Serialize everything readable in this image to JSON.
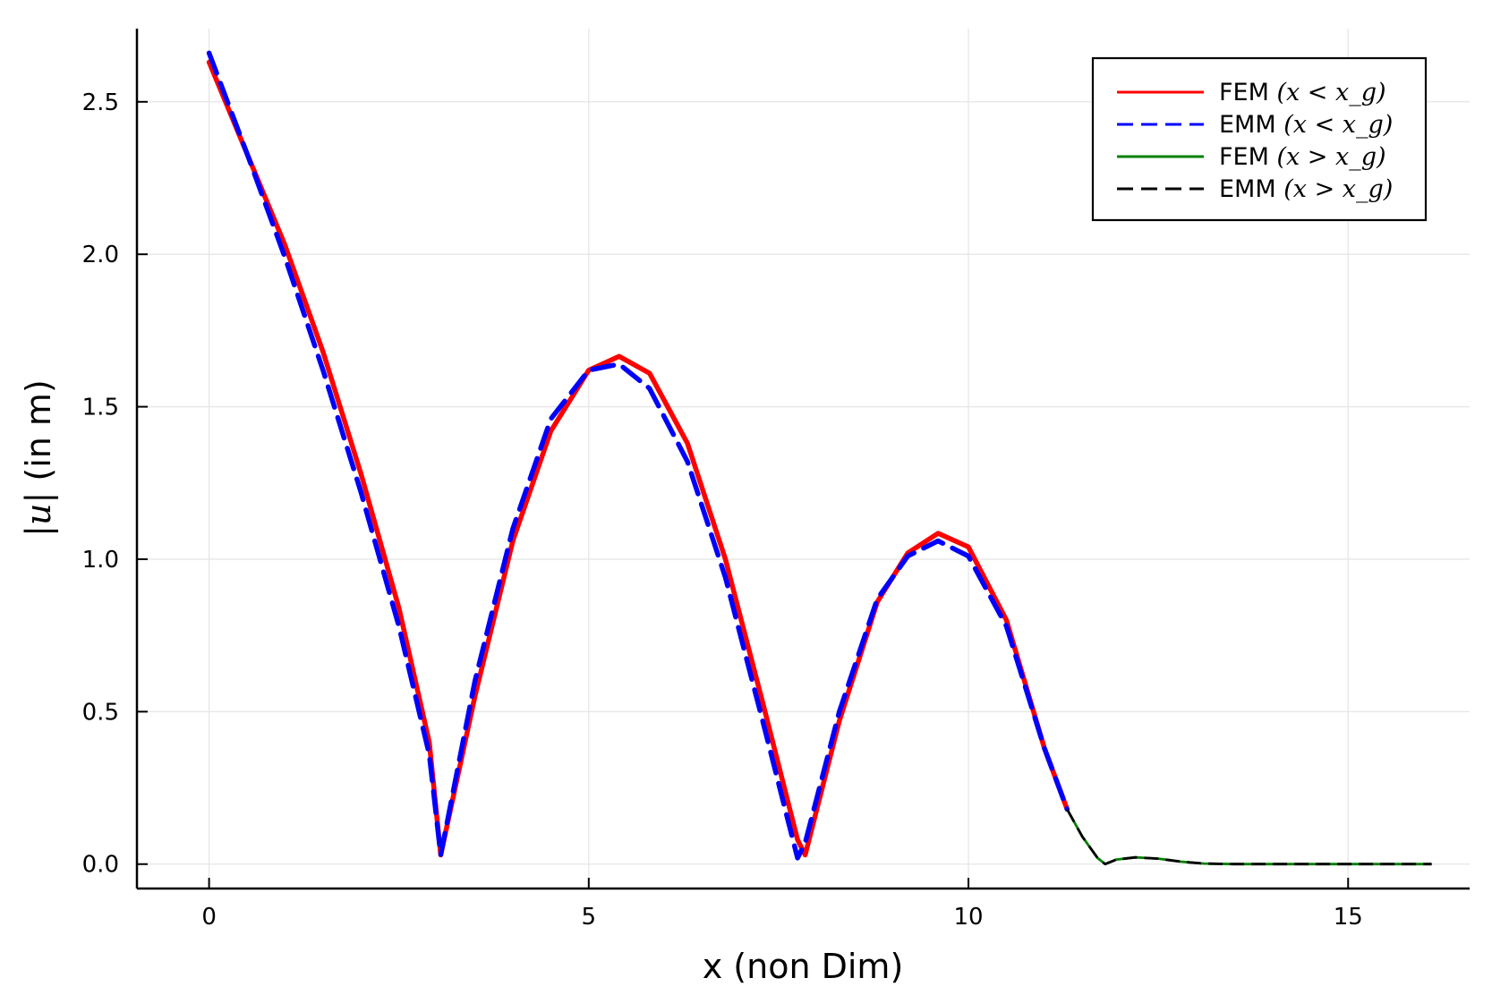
{
  "chart_data": {
    "type": "line",
    "xlabel": "x (non Dim)",
    "ylabel_math": "|u|",
    "ylabel_text": " (in m)",
    "xlim": [
      -0.95,
      16.6
    ],
    "ylim": [
      -0.08,
      2.74
    ],
    "xticks": [
      0,
      5,
      10,
      15
    ],
    "xtick_labels": [
      "0",
      "5",
      "10",
      "15"
    ],
    "yticks": [
      0.0,
      0.5,
      1.0,
      1.5,
      2.0,
      2.5
    ],
    "ytick_labels": [
      "0.0",
      "0.5",
      "1.0",
      "1.5",
      "2.0",
      "2.5"
    ],
    "grid": true,
    "legend_position": "top-right",
    "series": [
      {
        "name": "FEM",
        "name_math": "(x < x_g)",
        "color": "#ff0000",
        "style": "solid",
        "x": [
          0,
          0.5,
          1.0,
          1.5,
          2.0,
          2.5,
          2.9,
          3.05,
          3.5,
          4.0,
          4.5,
          5.0,
          5.4,
          5.8,
          6.3,
          6.8,
          7.3,
          7.75,
          7.85,
          8.3,
          8.8,
          9.2,
          9.6,
          10.0,
          10.5,
          11.0,
          11.3
        ],
        "y": [
          2.63,
          2.33,
          2.03,
          1.68,
          1.28,
          0.84,
          0.4,
          0.03,
          0.55,
          1.06,
          1.42,
          1.62,
          1.665,
          1.61,
          1.38,
          1.0,
          0.52,
          0.08,
          0.03,
          0.47,
          0.86,
          1.02,
          1.085,
          1.04,
          0.8,
          0.38,
          0.18
        ]
      },
      {
        "name": "EMM",
        "name_math": "(x < x_g)",
        "color": "#0000ff",
        "style": "dashed",
        "x": [
          0,
          0.5,
          1.0,
          1.5,
          2.0,
          2.5,
          2.9,
          3.05,
          3.5,
          4.0,
          4.5,
          5.0,
          5.4,
          5.8,
          6.3,
          6.8,
          7.3,
          7.75,
          7.85,
          8.3,
          8.8,
          9.2,
          9.6,
          10.0,
          10.5,
          11.0,
          11.3
        ],
        "y": [
          2.66,
          2.33,
          1.99,
          1.62,
          1.22,
          0.78,
          0.36,
          0.03,
          0.6,
          1.1,
          1.46,
          1.62,
          1.64,
          1.56,
          1.32,
          0.94,
          0.46,
          0.02,
          0.07,
          0.5,
          0.87,
          1.01,
          1.06,
          1.01,
          0.78,
          0.38,
          0.18
        ]
      },
      {
        "name": "FEM",
        "name_math": "(x > x_g)",
        "color": "#008000",
        "style": "solid",
        "x": [
          11.3,
          11.5,
          11.7,
          11.8,
          11.95,
          12.2,
          12.5,
          12.8,
          13.1,
          13.5,
          14.0,
          14.5,
          15.0,
          15.5,
          16.1
        ],
        "y": [
          0.18,
          0.09,
          0.02,
          0.0,
          0.015,
          0.022,
          0.018,
          0.008,
          0.002,
          0.0,
          0.0,
          0.0,
          0.0,
          0.0,
          0.0
        ]
      },
      {
        "name": "EMM",
        "name_math": "(x > x_g)",
        "color": "#000000",
        "style": "dashed",
        "x": [
          11.3,
          11.5,
          11.7,
          11.8,
          11.95,
          12.2,
          12.5,
          12.8,
          13.1,
          13.5,
          14.0,
          14.5,
          15.0,
          15.5,
          16.1
        ],
        "y": [
          0.18,
          0.09,
          0.02,
          0.0,
          0.015,
          0.022,
          0.018,
          0.008,
          0.002,
          0.0,
          0.0,
          0.0,
          0.0,
          0.0,
          0.0
        ]
      }
    ]
  }
}
